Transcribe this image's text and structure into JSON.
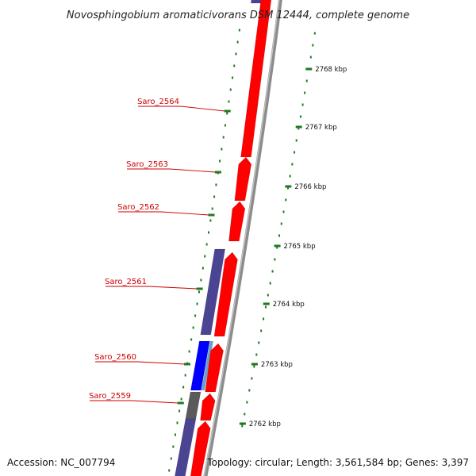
{
  "title": "Novosphingobium aromaticivorans DSM 12444, complete genome",
  "accession": "Accession: NC_007794",
  "summary": "Topology: circular; Length: 3,561,584 bp; Genes: 3,397",
  "genes": [
    {
      "id": "Saro_2564"
    },
    {
      "id": "Saro_2563"
    },
    {
      "id": "Saro_2562"
    },
    {
      "id": "Saro_2561"
    },
    {
      "id": "Saro_2560"
    },
    {
      "id": "Saro_2559"
    }
  ],
  "scale_ticks": [
    "2768 kbp",
    "2767 kbp",
    "2766 kbp",
    "2765 kbp",
    "2764 kbp",
    "2763 kbp",
    "2762 kbp"
  ],
  "colors": {
    "forward_gene": "#ff0000",
    "reverse_gene": "#4a4492",
    "reverse_gene_blue": "#0000ff",
    "reverse_gene_gray": "#5a5a5a",
    "backbone": "#8c8c8c",
    "ruler": "#1f7a1f",
    "label": "#cc0000"
  }
}
